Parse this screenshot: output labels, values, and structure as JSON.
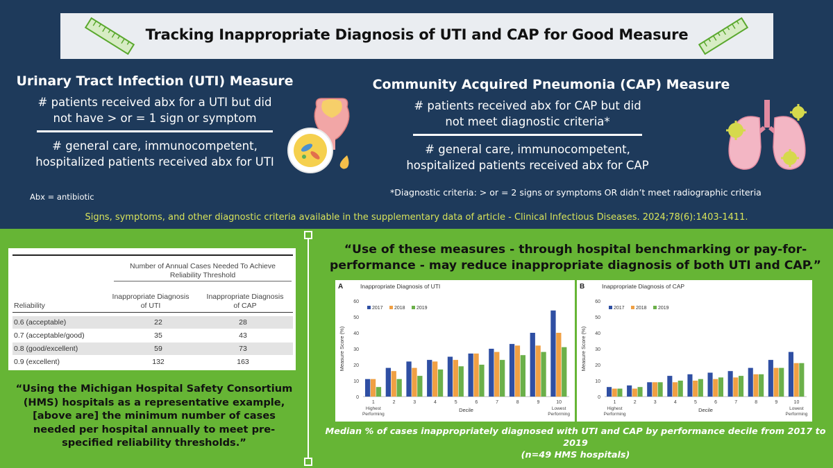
{
  "title": "Tracking Inappropriate Diagnosis of UTI and CAP for Good Measure",
  "uti": {
    "heading": "Urinary Tract Infection (UTI) Measure",
    "numerator_line1": "# patients received abx for a UTI but did",
    "numerator_line2": "not have > or = 1 sign or symptom",
    "denominator_line1": "# general care, immunocompetent,",
    "denominator_line2": "hospitalized patients received abx for UTI",
    "abx_note": "Abx = antibiotic"
  },
  "cap": {
    "heading": "Community Acquired Pneumonia (CAP) Measure",
    "numerator_line1": "# patients received abx for CAP but did",
    "numerator_line2": "not meet diagnostic criteria*",
    "denominator_line1": "# general care, immunocompetent,",
    "denominator_line2": "hospitalized patients received abx for CAP",
    "criteria_note": "*Diagnostic criteria: > or = 2 signs or symptoms OR didn’t meet radiographic criteria"
  },
  "source_note": "Signs, symptoms, and other diagnostic criteria available in the supplementary data of article - Clinical Infectious Diseases. 2024;78(6):1403-1411.",
  "table": {
    "group_header_line1": "Number of Annual Cases Needed To Achieve",
    "group_header_line2": "Reliability Threshold",
    "col_uti_line1": "Inappropriate Diagnosis",
    "col_uti_line2": "of UTI",
    "col_cap_line1": "Inappropriate Diagnosis",
    "col_cap_line2": "of CAP",
    "col_reliability": "Reliability",
    "rows": [
      {
        "reliability": "0.6 (acceptable)",
        "uti": "22",
        "cap": "28"
      },
      {
        "reliability": "0.7 (acceptable/good)",
        "uti": "35",
        "cap": "43"
      },
      {
        "reliability": "0.8 (good/excellent)",
        "uti": "59",
        "cap": "73"
      },
      {
        "reliability": "0.9 (excellent)",
        "uti": "132",
        "cap": "163"
      }
    ]
  },
  "left_quote": "“Using the Michigan Hospital Safety Consortium (HMS) hospitals as a representative example, [above are] the minimum number of cases needed per hospital annually to meet pre-specified reliability thresholds.”",
  "right_quote": "“Use of these measures - through hospital benchmarking or pay-for-performance - may reduce inappropriate diagnosis of both UTI and CAP.”",
  "caption_line1": "Median % of cases inappropriately diagnosed with UTI and CAP by performance decile from 2017 to 2019",
  "caption_line2": "(n=49 HMS hospitals)",
  "colors": {
    "navy": "#1e3a5b",
    "green": "#66b535",
    "accent_yellow": "#d8e35a",
    "series_2017": "#2f4fa3",
    "series_2018": "#f0a044",
    "series_2019": "#6bb04a"
  },
  "icons": [
    "ruler-icon-left",
    "ruler-icon-right",
    "bladder-illustration",
    "bacteria-magnifier-illustration",
    "lungs-virus-illustration"
  ],
  "chart_data": [
    {
      "panel": "A",
      "type": "bar",
      "title": "Inappropriate Diagnosis of UTI",
      "xlabel": "Decile",
      "ylabel": "Measure Score (%)",
      "ylim": [
        0,
        60
      ],
      "yticks": [
        0,
        10,
        20,
        30,
        40,
        50,
        60
      ],
      "categories": [
        "1",
        "2",
        "3",
        "4",
        "5",
        "6",
        "7",
        "8",
        "9",
        "10"
      ],
      "category_notes": {
        "1": "Highest Performing",
        "10": "Lowest Performing"
      },
      "legend": "top-left",
      "series": [
        {
          "name": "2017",
          "values": [
            11,
            18,
            22,
            23,
            25,
            27,
            30,
            33,
            40,
            54
          ]
        },
        {
          "name": "2018",
          "values": [
            11,
            16,
            18,
            22,
            23,
            27,
            28,
            32,
            32,
            40
          ]
        },
        {
          "name": "2019",
          "values": [
            6,
            11,
            13,
            17,
            19,
            20,
            23,
            26,
            28,
            31
          ]
        }
      ]
    },
    {
      "panel": "B",
      "type": "bar",
      "title": "Inappropriate Diagnosis of CAP",
      "xlabel": "Decile",
      "ylabel": "Measure Score (%)",
      "ylim": [
        0,
        60
      ],
      "yticks": [
        0,
        10,
        20,
        30,
        40,
        50,
        60
      ],
      "categories": [
        "1",
        "2",
        "3",
        "4",
        "5",
        "6",
        "7",
        "8",
        "9",
        "10"
      ],
      "category_notes": {
        "1": "Highest Performing",
        "10": "Lowest Performing"
      },
      "legend": "top-left",
      "series": [
        {
          "name": "2017",
          "values": [
            6,
            7,
            9,
            13,
            14,
            15,
            16,
            18,
            23,
            28
          ]
        },
        {
          "name": "2018",
          "values": [
            5,
            5,
            9,
            9,
            10,
            11,
            12,
            14,
            18,
            21
          ]
        },
        {
          "name": "2019",
          "values": [
            5,
            6,
            9,
            10,
            11,
            12,
            13,
            14,
            18,
            21
          ]
        }
      ]
    }
  ]
}
